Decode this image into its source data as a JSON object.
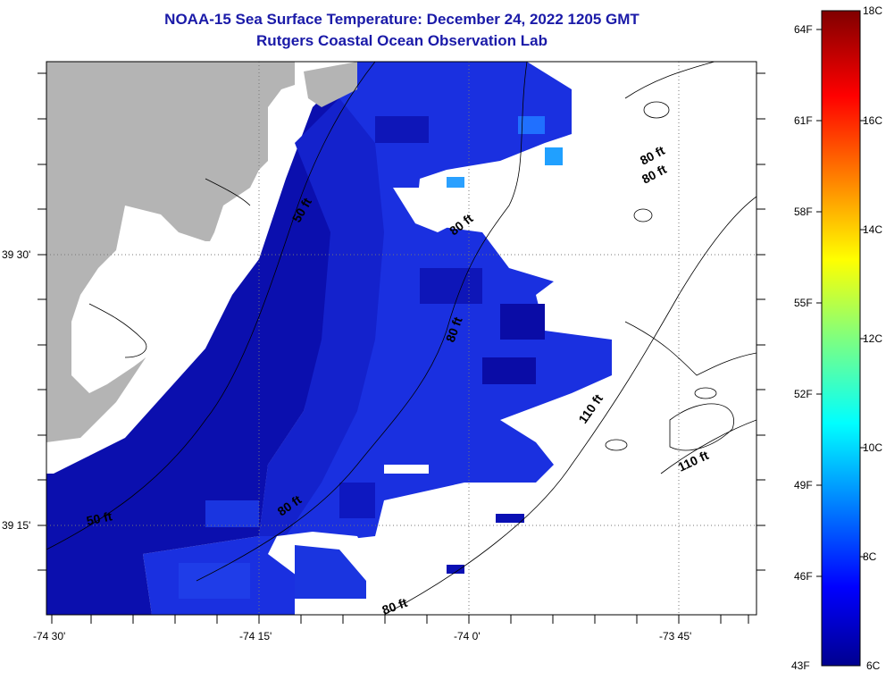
{
  "title": {
    "line1": "NOAA-15 Sea Surface Temperature:  December 24, 2022 1205 GMT",
    "line2": "Rutgers Coastal Ocean Observation Lab"
  },
  "map": {
    "lat_labels": [
      "39 30'",
      "39 15'"
    ],
    "lon_labels": [
      "-74 30'",
      "-74 15'",
      "-74 0'",
      "-73 45'"
    ],
    "depth_contour_labels": [
      "50 ft",
      "50 ft",
      "80 ft",
      "80 ft",
      "80 ft",
      "80 ft",
      "80 ft",
      "80 ft",
      "110 ft",
      "110 ft"
    ],
    "colors": {
      "land": "#b4b4b4",
      "coastal_sst": "#0a10b4",
      "offshore_sst": "#1a35e0",
      "frame": "#000000"
    }
  },
  "colorbar": {
    "fahrenheit_labels": [
      "64F",
      "61F",
      "58F",
      "55F",
      "52F",
      "49F",
      "46F",
      "43F"
    ],
    "celsius_labels": [
      "18C",
      "16C",
      "14C",
      "12C",
      "10C",
      "8C",
      "6C"
    ],
    "colormap": "jet"
  }
}
